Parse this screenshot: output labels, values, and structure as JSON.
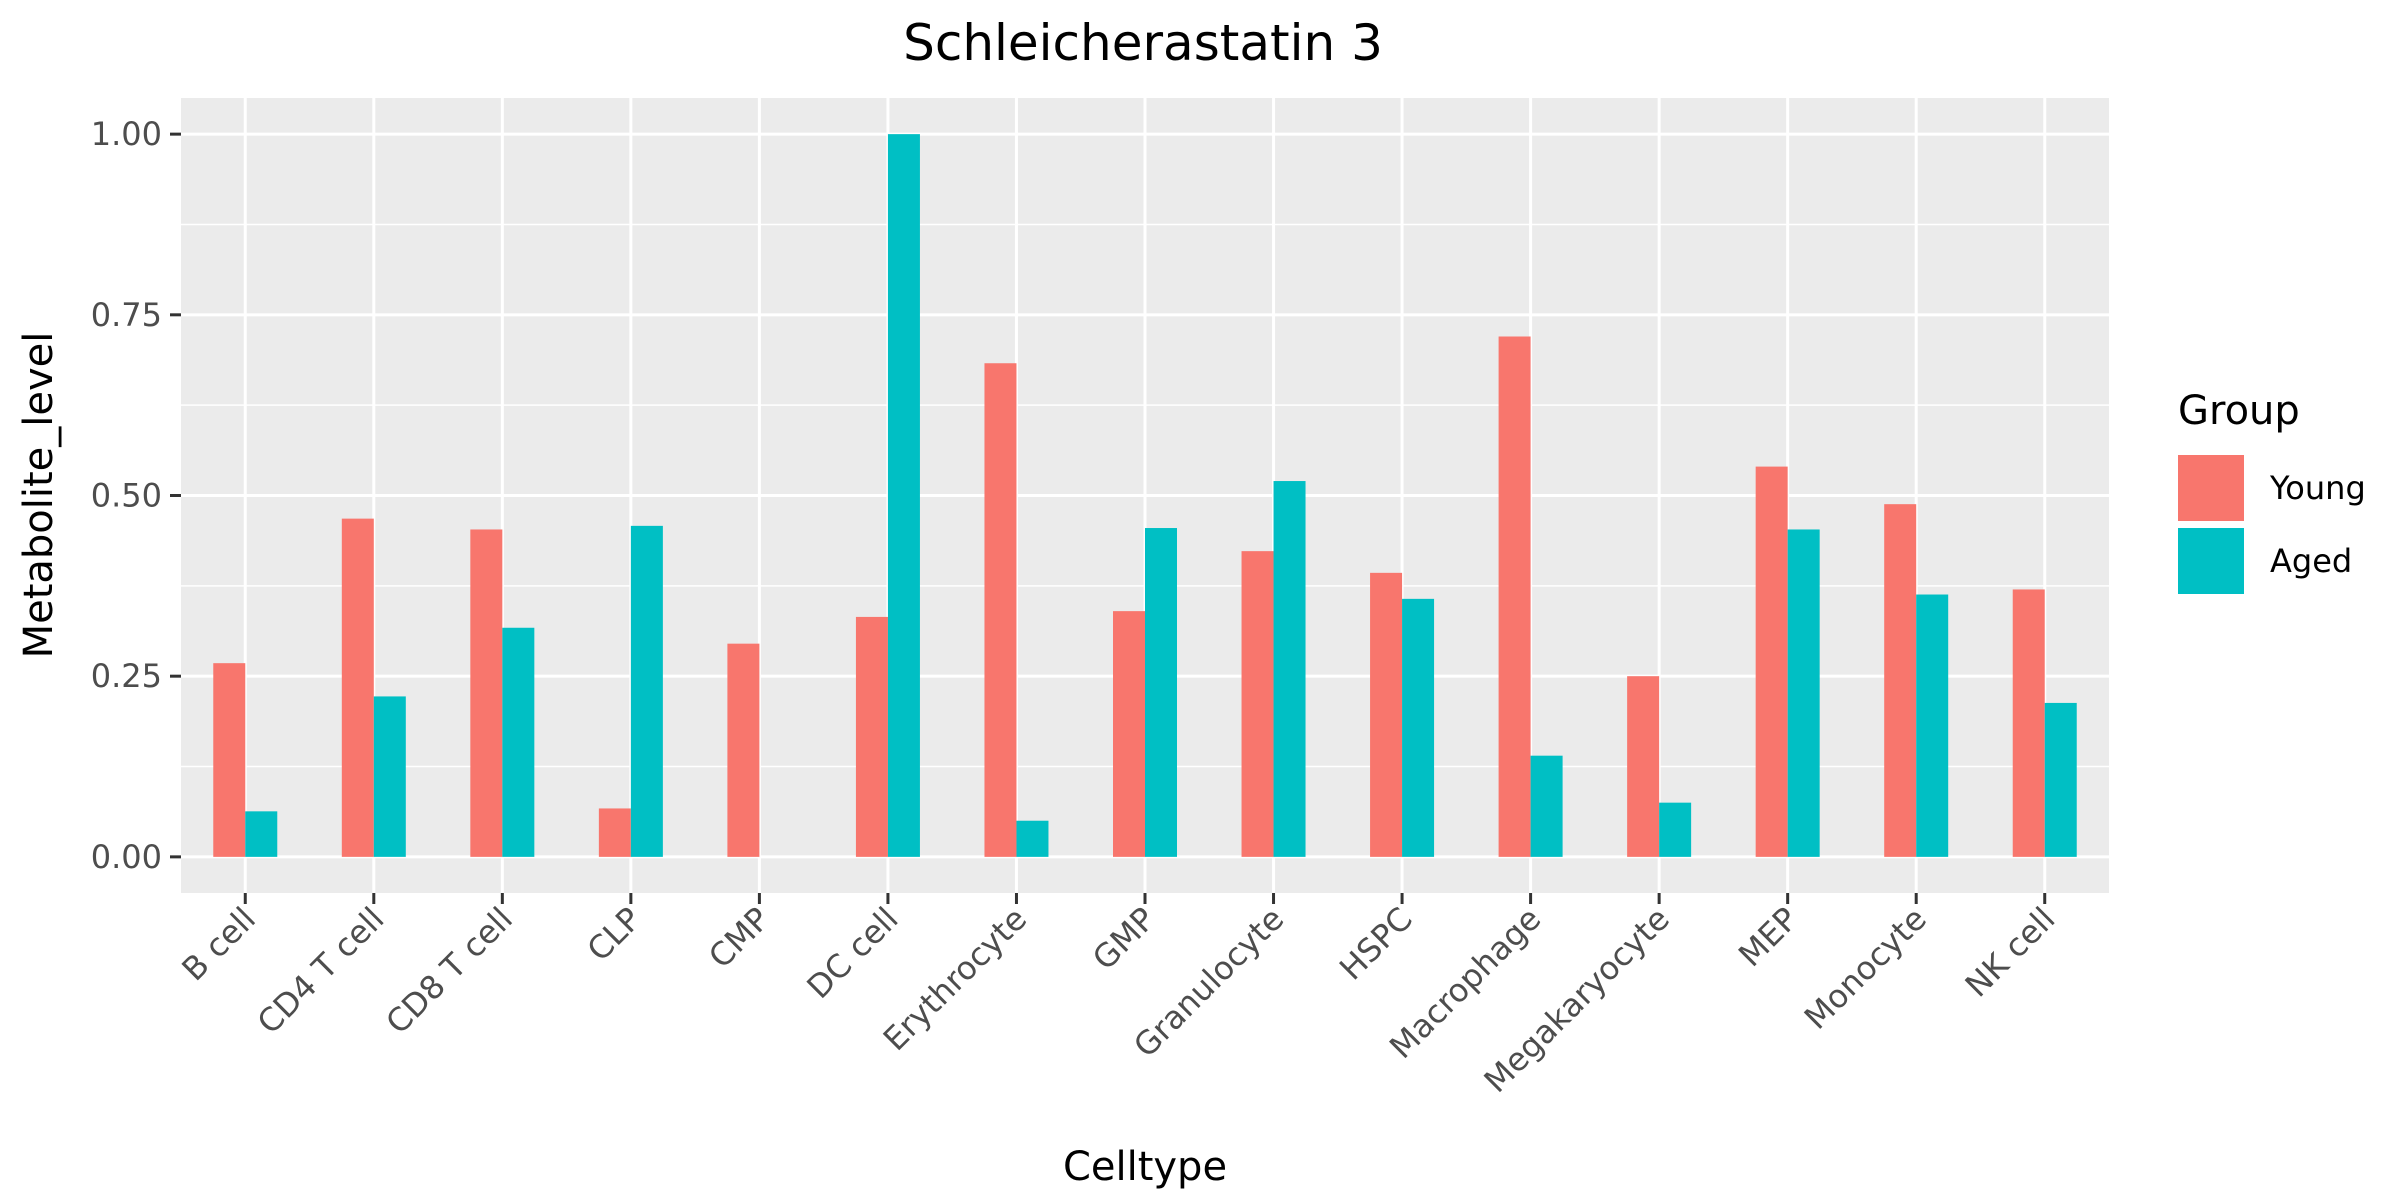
{
  "chart_data": {
    "type": "bar",
    "title": "Schleicherastatin 3",
    "xlabel": "Celltype",
    "ylabel": "Metabolite_level",
    "ylim": [
      -0.05,
      1.05
    ],
    "yticks": [
      0.0,
      0.25,
      0.5,
      0.75,
      1.0
    ],
    "ytick_labels": [
      "0.00",
      "0.25",
      "0.50",
      "0.75",
      "1.00"
    ],
    "grid": true,
    "legend": {
      "title": "Group",
      "placement": "right"
    },
    "categories": [
      "B cell",
      "CD4 T cell",
      "CD8 T cell",
      "CLP",
      "CMP",
      "DC cell",
      "Erythrocyte",
      "GMP",
      "Granulocyte",
      "HSPC",
      "Macrophage",
      "Megakaryocyte",
      "MEP",
      "Monocyte",
      "NK cell"
    ],
    "series": [
      {
        "name": "Young",
        "color": "#F8766D",
        "values": [
          0.268,
          0.468,
          0.453,
          0.067,
          0.295,
          0.332,
          0.683,
          0.34,
          0.423,
          0.393,
          0.72,
          0.25,
          0.54,
          0.488,
          0.37
        ]
      },
      {
        "name": "Aged",
        "color": "#00BFC4",
        "values": [
          0.063,
          0.222,
          0.317,
          0.458,
          0.0,
          1.0,
          0.05,
          0.455,
          0.52,
          0.357,
          0.14,
          0.075,
          0.453,
          0.363,
          0.213
        ]
      }
    ]
  }
}
